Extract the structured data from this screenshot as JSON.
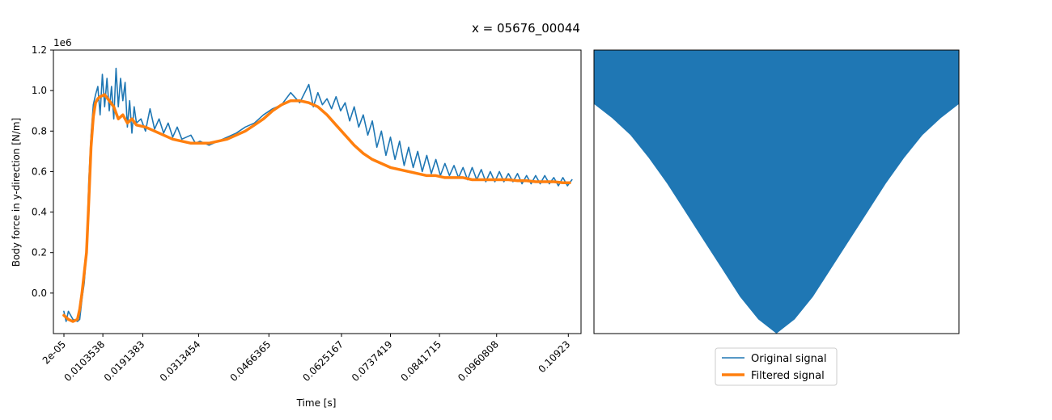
{
  "title": "x = 05676_00044",
  "colors": {
    "original": "#1f77b4",
    "filtered": "#ff7f0e"
  },
  "chart_data": [
    {
      "type": "line",
      "xlabel": "Time [s]",
      "ylabel": "Body force in y-direction [N/m]",
      "y_offset_label": "1e6",
      "xlim": [
        -0.0023,
        0.114
      ],
      "ylim": [
        -0.2,
        1.2
      ],
      "yticks": [
        0.0,
        0.2,
        0.4,
        0.6,
        0.8,
        1.0,
        1.2
      ],
      "ytick_labels": [
        "0.0",
        "0.2",
        "0.4",
        "0.6",
        "0.8",
        "1.0",
        "1.2"
      ],
      "xticks": [
        2e-05,
        0.0086,
        0.0174,
        0.0297,
        0.0452,
        0.0612,
        0.072,
        0.0828,
        0.0954,
        0.1112
      ],
      "xtick_labels": [
        "2e-05",
        "0.0103538",
        "0.0191383",
        "0.0313454",
        "0.0466365",
        "0.0625167",
        "0.0737419",
        "0.0841715",
        "0.0960808",
        "0.10923"
      ],
      "grid": false,
      "series": [
        {
          "name": "Original signal",
          "x": [
            0.0,
            0.0005,
            0.001,
            0.002,
            0.003,
            0.0035,
            0.004,
            0.0045,
            0.005,
            0.0055,
            0.006,
            0.0065,
            0.007,
            0.0075,
            0.008,
            0.0085,
            0.009,
            0.0095,
            0.01,
            0.0105,
            0.011,
            0.0115,
            0.012,
            0.0125,
            0.013,
            0.0135,
            0.014,
            0.0145,
            0.015,
            0.0155,
            0.016,
            0.017,
            0.018,
            0.019,
            0.02,
            0.021,
            0.022,
            0.023,
            0.024,
            0.025,
            0.026,
            0.027,
            0.028,
            0.029,
            0.03,
            0.032,
            0.034,
            0.036,
            0.038,
            0.04,
            0.042,
            0.044,
            0.046,
            0.048,
            0.05,
            0.052,
            0.054,
            0.055,
            0.056,
            0.057,
            0.058,
            0.059,
            0.06,
            0.061,
            0.062,
            0.063,
            0.064,
            0.065,
            0.066,
            0.067,
            0.068,
            0.069,
            0.07,
            0.071,
            0.072,
            0.073,
            0.074,
            0.075,
            0.076,
            0.077,
            0.078,
            0.079,
            0.08,
            0.081,
            0.082,
            0.083,
            0.084,
            0.085,
            0.086,
            0.087,
            0.088,
            0.089,
            0.09,
            0.091,
            0.092,
            0.093,
            0.094,
            0.095,
            0.096,
            0.097,
            0.098,
            0.099,
            0.1,
            0.101,
            0.102,
            0.103,
            0.104,
            0.105,
            0.106,
            0.107,
            0.108,
            0.109,
            0.11,
            0.111,
            0.112
          ],
          "values": [
            -0.09,
            -0.14,
            -0.09,
            -0.13,
            -0.14,
            -0.13,
            -0.03,
            0.05,
            0.2,
            0.55,
            0.78,
            0.93,
            0.98,
            1.02,
            0.88,
            1.08,
            0.92,
            1.06,
            0.9,
            1.02,
            0.86,
            1.11,
            0.92,
            1.06,
            0.95,
            1.04,
            0.82,
            0.95,
            0.79,
            0.92,
            0.84,
            0.86,
            0.8,
            0.91,
            0.81,
            0.86,
            0.79,
            0.84,
            0.77,
            0.82,
            0.76,
            0.77,
            0.78,
            0.74,
            0.75,
            0.73,
            0.75,
            0.77,
            0.79,
            0.82,
            0.84,
            0.88,
            0.91,
            0.93,
            0.99,
            0.94,
            1.03,
            0.92,
            0.99,
            0.93,
            0.96,
            0.91,
            0.97,
            0.9,
            0.94,
            0.85,
            0.92,
            0.82,
            0.88,
            0.78,
            0.85,
            0.72,
            0.8,
            0.68,
            0.77,
            0.66,
            0.75,
            0.63,
            0.72,
            0.62,
            0.7,
            0.6,
            0.68,
            0.59,
            0.66,
            0.58,
            0.64,
            0.58,
            0.63,
            0.57,
            0.62,
            0.56,
            0.62,
            0.56,
            0.61,
            0.55,
            0.6,
            0.55,
            0.6,
            0.55,
            0.59,
            0.55,
            0.59,
            0.54,
            0.58,
            0.54,
            0.58,
            0.54,
            0.58,
            0.54,
            0.57,
            0.53,
            0.57,
            0.53,
            0.56
          ]
        },
        {
          "name": "Filtered signal",
          "x": [
            0.0,
            0.001,
            0.002,
            0.003,
            0.0035,
            0.004,
            0.0045,
            0.005,
            0.0055,
            0.006,
            0.0065,
            0.007,
            0.0075,
            0.008,
            0.009,
            0.01,
            0.011,
            0.012,
            0.013,
            0.014,
            0.015,
            0.016,
            0.018,
            0.02,
            0.022,
            0.024,
            0.026,
            0.028,
            0.03,
            0.032,
            0.034,
            0.036,
            0.038,
            0.04,
            0.042,
            0.044,
            0.046,
            0.048,
            0.05,
            0.052,
            0.054,
            0.056,
            0.058,
            0.06,
            0.062,
            0.064,
            0.066,
            0.068,
            0.07,
            0.072,
            0.074,
            0.076,
            0.078,
            0.08,
            0.082,
            0.084,
            0.086,
            0.088,
            0.09,
            0.092,
            0.094,
            0.096,
            0.098,
            0.1,
            0.102,
            0.104,
            0.106,
            0.108,
            0.11,
            0.1115
          ],
          "values": [
            -0.11,
            -0.13,
            -0.14,
            -0.13,
            -0.08,
            0.0,
            0.1,
            0.2,
            0.45,
            0.72,
            0.87,
            0.94,
            0.96,
            0.97,
            0.98,
            0.95,
            0.92,
            0.86,
            0.88,
            0.84,
            0.86,
            0.83,
            0.82,
            0.8,
            0.78,
            0.76,
            0.75,
            0.74,
            0.74,
            0.74,
            0.75,
            0.76,
            0.78,
            0.8,
            0.83,
            0.86,
            0.9,
            0.93,
            0.95,
            0.95,
            0.94,
            0.92,
            0.88,
            0.83,
            0.78,
            0.73,
            0.69,
            0.66,
            0.64,
            0.62,
            0.61,
            0.6,
            0.59,
            0.58,
            0.58,
            0.57,
            0.57,
            0.57,
            0.56,
            0.56,
            0.56,
            0.56,
            0.56,
            0.555,
            0.555,
            0.55,
            0.55,
            0.55,
            0.545,
            0.545
          ]
        }
      ]
    },
    {
      "type": "area",
      "title": "",
      "xlabel": "",
      "ylabel": "",
      "xticks": [],
      "yticks": [],
      "xlim": [
        0,
        1
      ],
      "ylim": [
        0,
        1
      ],
      "series": [
        {
          "name": "",
          "x": [
            0,
            0.05,
            0.1,
            0.15,
            0.2,
            0.25,
            0.3,
            0.35,
            0.4,
            0.45,
            0.5,
            0.55,
            0.6,
            0.65,
            0.7,
            0.75,
            0.8,
            0.85,
            0.9,
            0.95,
            1.0
          ],
          "values": [
            0.81,
            0.76,
            0.7,
            0.62,
            0.53,
            0.43,
            0.33,
            0.23,
            0.13,
            0.05,
            0.0,
            0.05,
            0.13,
            0.23,
            0.33,
            0.43,
            0.53,
            0.62,
            0.7,
            0.76,
            0.81
          ]
        }
      ]
    }
  ],
  "legend": {
    "placement": "below-right-panel",
    "entries": [
      {
        "label": "Original signal",
        "color": "#1f77b4"
      },
      {
        "label": "Filtered signal",
        "color": "#ff7f0e"
      }
    ]
  }
}
